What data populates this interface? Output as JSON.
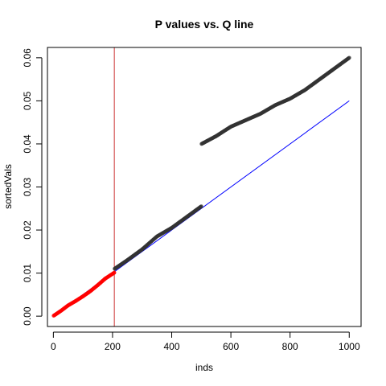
{
  "chart_data": {
    "type": "scatter",
    "title": "P values vs. Q line",
    "xlabel": "inds",
    "ylabel": "sortedVals",
    "xlim": [
      -20,
      1040
    ],
    "ylim": [
      -0.0024,
      0.0624
    ],
    "x_ticks": [
      0,
      200,
      400,
      600,
      800,
      1000
    ],
    "x_tick_labels": [
      "0",
      "200",
      "400",
      "600",
      "800",
      "1000"
    ],
    "y_ticks": [
      0.0,
      0.01,
      0.02,
      0.03,
      0.04,
      0.05,
      0.06
    ],
    "y_tick_labels": [
      "0.00",
      "0.01",
      "0.02",
      "0.03",
      "0.04",
      "0.05",
      "0.06"
    ],
    "grid": false,
    "series": [
      {
        "color": "#ff0000",
        "point_style": "filled-circle",
        "segments": [
          {
            "x": [
              1,
              25,
              50,
              75,
              100,
              125,
              150,
              175,
              206
            ],
            "y": [
              0.0001,
              0.0012,
              0.0025,
              0.0035,
              0.0046,
              0.0058,
              0.0072,
              0.0087,
              0.0101
            ]
          }
        ]
      },
      {
        "color": "#333333",
        "point_style": "filled-circle",
        "segments": [
          {
            "x": [
              207,
              250,
              300,
              350,
              400,
              450,
              500
            ],
            "y": [
              0.011,
              0.013,
              0.0155,
              0.0185,
              0.0205,
              0.023,
              0.0255
            ]
          },
          {
            "x": [
              501,
              550,
              600,
              650,
              700,
              750,
              800,
              850,
              900,
              950,
              1000
            ],
            "y": [
              0.04,
              0.0418,
              0.044,
              0.0455,
              0.047,
              0.049,
              0.0505,
              0.0525,
              0.055,
              0.0575,
              0.06
            ]
          }
        ]
      }
    ],
    "reference_lines": [
      {
        "kind": "line",
        "color": "#0000ff",
        "from": [
          0,
          0
        ],
        "to": [
          1000,
          0.05
        ]
      },
      {
        "kind": "vline",
        "color": "#cc3333",
        "x": 206
      }
    ]
  }
}
